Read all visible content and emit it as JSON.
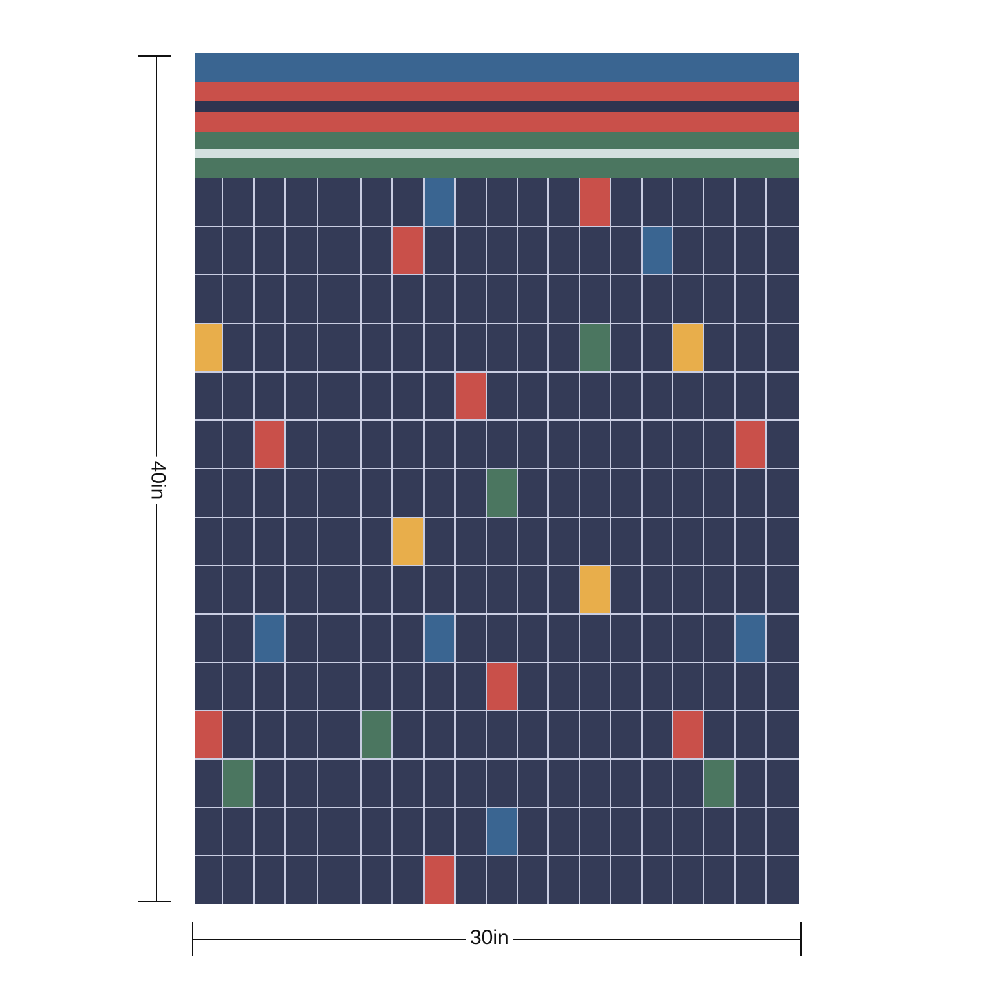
{
  "dimensions": {
    "width_label": "30in",
    "height_label": "40in"
  },
  "colors": {
    "background": "#343b57",
    "grid_line": "#c9cde2",
    "blue": "#3a6591",
    "red": "#c9504a",
    "green": "#4b7660",
    "yellow": "#e8ae4b",
    "white": "#d3e0df",
    "navy": "#2f3450"
  },
  "stripes": [
    "blue",
    "red",
    "navy",
    "red",
    "green",
    "white",
    "green"
  ],
  "grid": {
    "rows": 15,
    "columns": 19,
    "colored_cells": [
      {
        "row": 0,
        "col": 7,
        "color": "blue"
      },
      {
        "row": 0,
        "col": 12,
        "color": "red"
      },
      {
        "row": 1,
        "col": 6,
        "color": "red"
      },
      {
        "row": 1,
        "col": 14,
        "color": "blue"
      },
      {
        "row": 3,
        "col": 0,
        "color": "yellow"
      },
      {
        "row": 3,
        "col": 12,
        "color": "green"
      },
      {
        "row": 3,
        "col": 15,
        "color": "yellow"
      },
      {
        "row": 4,
        "col": 8,
        "color": "red"
      },
      {
        "row": 5,
        "col": 2,
        "color": "red"
      },
      {
        "row": 5,
        "col": 17,
        "color": "red"
      },
      {
        "row": 6,
        "col": 9,
        "color": "green"
      },
      {
        "row": 7,
        "col": 6,
        "color": "yellow"
      },
      {
        "row": 8,
        "col": 12,
        "color": "yellow"
      },
      {
        "row": 9,
        "col": 2,
        "color": "blue"
      },
      {
        "row": 9,
        "col": 7,
        "color": "blue"
      },
      {
        "row": 9,
        "col": 17,
        "color": "blue"
      },
      {
        "row": 10,
        "col": 9,
        "color": "red"
      },
      {
        "row": 11,
        "col": 0,
        "color": "red"
      },
      {
        "row": 11,
        "col": 5,
        "color": "green"
      },
      {
        "row": 11,
        "col": 15,
        "color": "red"
      },
      {
        "row": 12,
        "col": 1,
        "color": "green"
      },
      {
        "row": 12,
        "col": 16,
        "color": "green"
      },
      {
        "row": 13,
        "col": 9,
        "color": "blue"
      },
      {
        "row": 14,
        "col": 7,
        "color": "red"
      }
    ]
  }
}
